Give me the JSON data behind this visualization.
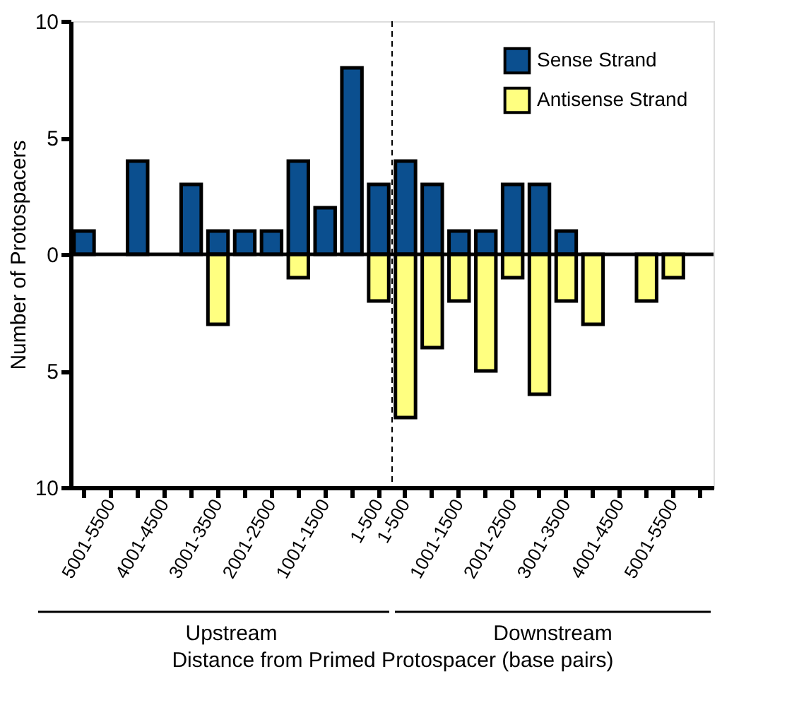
{
  "chart_data": {
    "type": "bar",
    "xlabel": "Distance from Primed Protospacer (base pairs)",
    "ylabel": "Number of Protospacers",
    "categories": [
      null,
      "5001-5500",
      null,
      "4001-4500",
      null,
      "3001-3500",
      null,
      "2001-2500",
      null,
      "1001-1500",
      null,
      "1-500",
      "1-500",
      null,
      "1001-1500",
      null,
      "2001-2500",
      null,
      "3001-3500",
      null,
      "4001-4500",
      null,
      "5001-5500",
      null
    ],
    "series": [
      {
        "name": "Sense Strand",
        "color": "#0b4f8f",
        "values": [
          1,
          null,
          4,
          null,
          3,
          1,
          1,
          1,
          4,
          2,
          8,
          3,
          4,
          3,
          1,
          1,
          3,
          3,
          1,
          null,
          null,
          null,
          null,
          null
        ]
      },
      {
        "name": "Antisense Strand",
        "color": "#ffff80",
        "values": [
          null,
          null,
          null,
          null,
          null,
          -3,
          null,
          null,
          -1,
          null,
          null,
          -2,
          -7,
          -4,
          -2,
          -5,
          -1,
          -6,
          -2,
          -3,
          null,
          -2,
          -1,
          null
        ]
      }
    ],
    "ylim": [
      -10,
      10
    ],
    "yticks": [
      {
        "value": -10,
        "label": "10"
      },
      {
        "value": -5,
        "label": "5"
      },
      0,
      5,
      10
    ],
    "ref_lines": [
      {
        "axis": "y",
        "value": 0,
        "line_style": "solid",
        "color": "#000000"
      }
    ],
    "annotations": [
      "Upstream",
      "Downstream"
    ],
    "legend": "top right",
    "grid": false
  }
}
